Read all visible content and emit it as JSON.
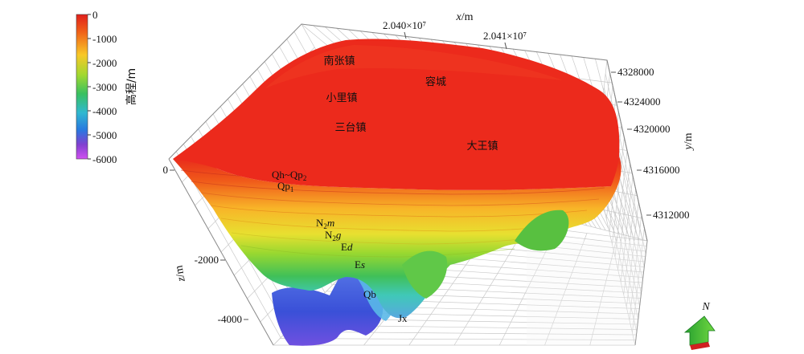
{
  "colorbar": {
    "title": "高程/m",
    "ticks": [
      "0",
      "-1000",
      "-2000",
      "-3000",
      "-4000",
      "-5000",
      "-6000"
    ],
    "colors": [
      "#e0201c",
      "#f06018",
      "#f8c828",
      "#a0d830",
      "#38c060",
      "#30b8d0",
      "#2878e0",
      "#8040d0",
      "#d050f0"
    ]
  },
  "x_axis": {
    "title_var": "x",
    "title_unit": "/m",
    "ticks": [
      "2.040×10⁷",
      "2.041×10⁷"
    ]
  },
  "y_axis": {
    "title_var": "y",
    "title_unit": "/m",
    "ticks": [
      "4328000",
      "4324000",
      "4320000",
      "4316000",
      "4312000"
    ]
  },
  "z_axis": {
    "title_var": "z",
    "title_unit": "/m",
    "ticks": [
      "0",
      "-2000",
      "-4000"
    ]
  },
  "towns": [
    "南张镇",
    "容城",
    "小里镇",
    "三台镇",
    "大王镇"
  ],
  "strata": {
    "qh_qp2": {
      "base": "Qh~Qp",
      "sub": "2"
    },
    "qp1": {
      "base": "Qp",
      "sub": "1"
    },
    "n2m": {
      "base": "N",
      "sub": "2",
      "ital": "m"
    },
    "n2g": {
      "base": "N",
      "sub": "2",
      "ital": "g"
    },
    "ed": {
      "base": "E",
      "ital": "d"
    },
    "es": {
      "base": "E",
      "ital": "s"
    },
    "qb": "Qb",
    "jx": "Jx"
  },
  "north_label": "N"
}
